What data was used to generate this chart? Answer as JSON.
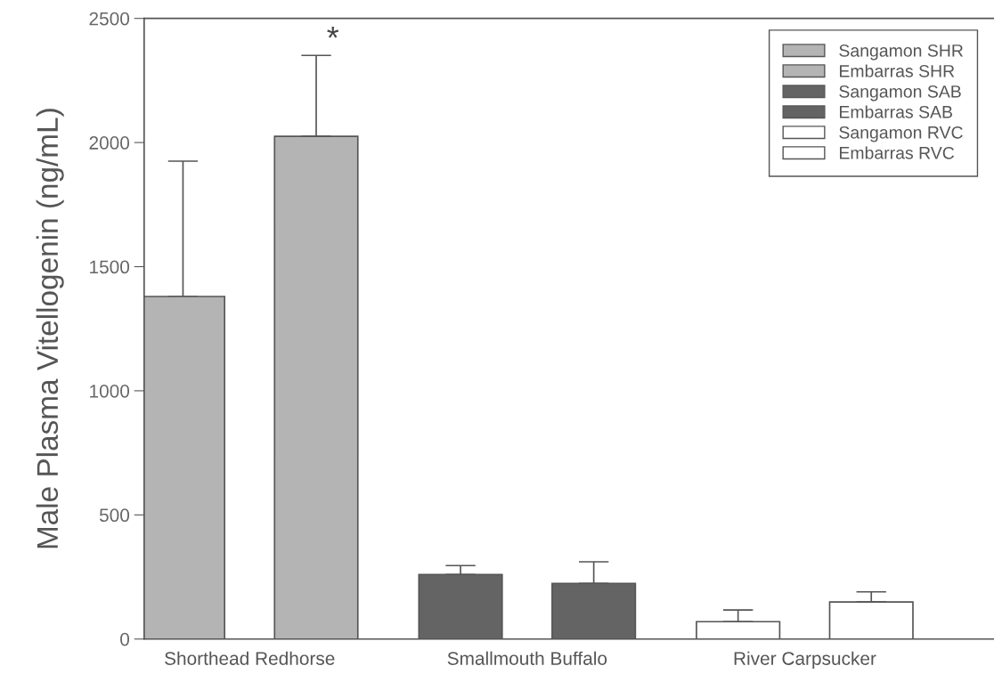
{
  "chart_data": {
    "type": "bar",
    "ylabel": "Male Plasma Vitellogenin (ng/mL)",
    "categories": [
      "Shorthead Redhorse",
      "Smallmouth Buffalo",
      "River Carpsucker"
    ],
    "series": [
      {
        "name": "Sangamon SHR",
        "color": "#b4b4b4",
        "values": [
          1380,
          null,
          null
        ],
        "errors": [
          545,
          null,
          null
        ]
      },
      {
        "name": "Embarras SHR",
        "color": "#b4b4b4",
        "values": [
          2025,
          null,
          null
        ],
        "errors": [
          326,
          null,
          null
        ]
      },
      {
        "name": "Sangamon SAB",
        "color": "#646464",
        "values": [
          null,
          260,
          null
        ],
        "errors": [
          null,
          36,
          null
        ]
      },
      {
        "name": "Embarras SAB",
        "color": "#646464",
        "values": [
          null,
          224,
          null
        ],
        "errors": [
          null,
          87,
          null
        ]
      },
      {
        "name": "Sangamon RVC",
        "color": "#ffffff",
        "values": [
          null,
          null,
          70
        ],
        "errors": [
          null,
          null,
          47
        ]
      },
      {
        "name": "Embarras RVC",
        "color": "#ffffff",
        "values": [
          null,
          null,
          149
        ],
        "errors": [
          null,
          null,
          41
        ]
      }
    ],
    "ylim": [
      0,
      2500
    ],
    "yticks": [
      0,
      500,
      1000,
      1500,
      2000,
      2500
    ],
    "annotations": [
      "*"
    ],
    "legend": "top right",
    "grid": false
  }
}
